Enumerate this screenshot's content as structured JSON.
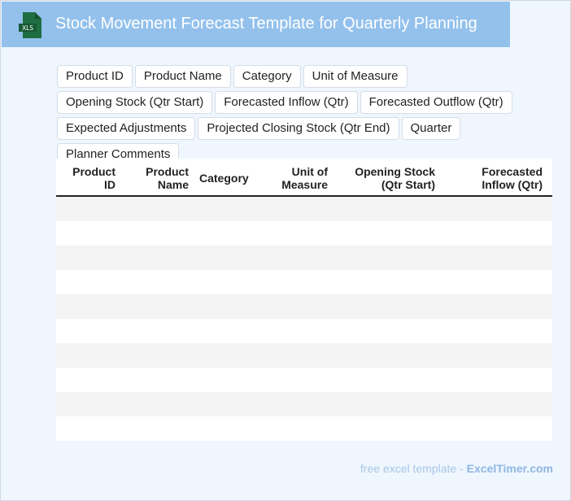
{
  "header": {
    "title": "Stock Movement Forecast Template for Quarterly Planning",
    "icon": "xls-file-icon",
    "icon_text": "XLS"
  },
  "fields": [
    "Product ID",
    "Product Name",
    "Category",
    "Unit of Measure",
    "Opening Stock (Qtr Start)",
    "Forecasted Inflow (Qtr)",
    "Forecasted Outflow (Qtr)",
    "Expected Adjustments",
    "Projected Closing Stock (Qtr End)",
    "Quarter",
    "Planner Comments"
  ],
  "table": {
    "columns": [
      {
        "line1": "Product",
        "line2": "ID"
      },
      {
        "line1": "Product",
        "line2": "Name"
      },
      {
        "line1": "Category",
        "line2": ""
      },
      {
        "line1": "Unit of",
        "line2": "Measure"
      },
      {
        "line1": "Opening Stock",
        "line2": "(Qtr Start)"
      },
      {
        "line1": "Forecasted",
        "line2": "Inflow (Qtr)"
      }
    ],
    "row_count": 10
  },
  "footer": {
    "prefix": "free excel template - ",
    "brand": "ExcelTimer.com"
  },
  "colors": {
    "header": "#93c1ec",
    "background": "#eff6fe",
    "icon": "#1e6e42"
  }
}
